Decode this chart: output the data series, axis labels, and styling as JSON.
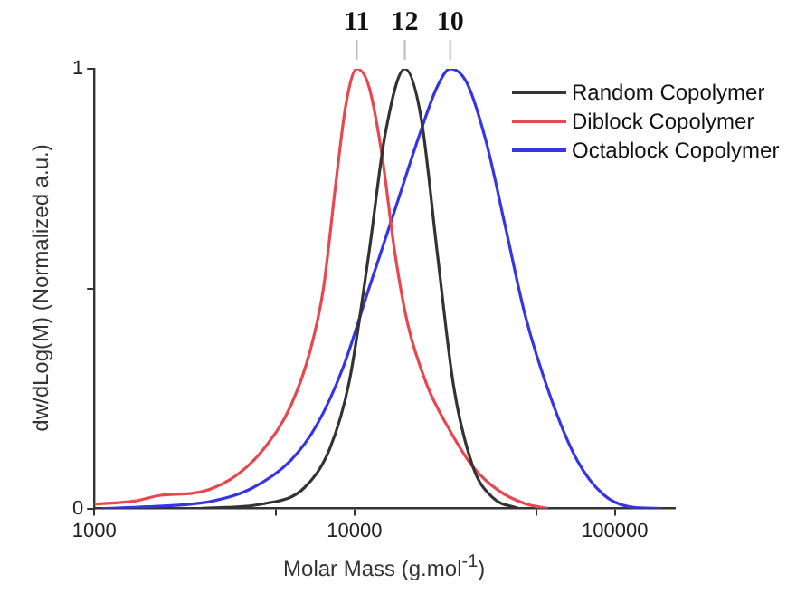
{
  "chart_data": {
    "type": "line",
    "xlabel": "Molar Mass (g.mol$^{-1}$)",
    "ylabel": "dw/dLog(M) (Normalized a.u.)",
    "log": "x",
    "xlim": [
      1000,
      170000
    ],
    "xticks": [
      1000,
      {
        "value": 5000,
        "label": null
      },
      10000,
      {
        "value": 50000,
        "label": null
      },
      100000
    ],
    "ylim": [
      0,
      1
    ],
    "yticks": [
      0,
      {
        "value": 0.5,
        "label": null
      },
      1
    ],
    "grid": false,
    "legend": "top right",
    "marker": "none",
    "line_style": "solid",
    "annotations": [
      {
        "text": "11",
        "x": 10200,
        "y": 1
      },
      {
        "text": "12",
        "x": 15600,
        "y": 1
      },
      {
        "text": "10",
        "x": 23300,
        "y": 1
      }
    ],
    "series": [
      {
        "name": "Random Copolymer",
        "color": "#333333",
        "x": [
          2540,
          4500,
          6380,
          8040,
          9550,
          11350,
          13100,
          15600,
          18000,
          20800,
          24000,
          28500,
          33900,
          42700
        ],
        "values": [
          0,
          0.011,
          0.046,
          0.137,
          0.29,
          0.58,
          0.85,
          1,
          0.89,
          0.58,
          0.28,
          0.095,
          0.025,
          0
        ]
      },
      {
        "name": "Diblock Copolymer",
        "color": "#e8474f",
        "x": [
          1000,
          1430,
          1800,
          2400,
          2850,
          3600,
          4500,
          5700,
          6760,
          7590,
          8510,
          9270,
          10200,
          11350,
          12700,
          14300,
          16000,
          19000,
          22600,
          28500,
          35900,
          45200,
          55300
        ],
        "values": [
          0.01,
          0.017,
          0.03,
          0.035,
          0.046,
          0.08,
          0.137,
          0.235,
          0.36,
          0.5,
          0.75,
          0.92,
          1,
          0.96,
          0.81,
          0.58,
          0.42,
          0.28,
          0.19,
          0.095,
          0.04,
          0.011,
          0
        ]
      },
      {
        "name": "Octablock Copolymer",
        "color": "#3535e6",
        "x": [
          1070,
          1600,
          2850,
          4030,
          5700,
          7160,
          9020,
          11350,
          14300,
          18000,
          20800,
          23300,
          26900,
          32000,
          38000,
          45200,
          56900,
          71600,
          90200,
          113500,
          151000
        ],
        "values": [
          0,
          0.004,
          0.017,
          0.046,
          0.11,
          0.19,
          0.32,
          0.5,
          0.68,
          0.86,
          0.96,
          1,
          0.97,
          0.835,
          0.64,
          0.44,
          0.25,
          0.11,
          0.032,
          0.004,
          0
        ]
      }
    ]
  }
}
